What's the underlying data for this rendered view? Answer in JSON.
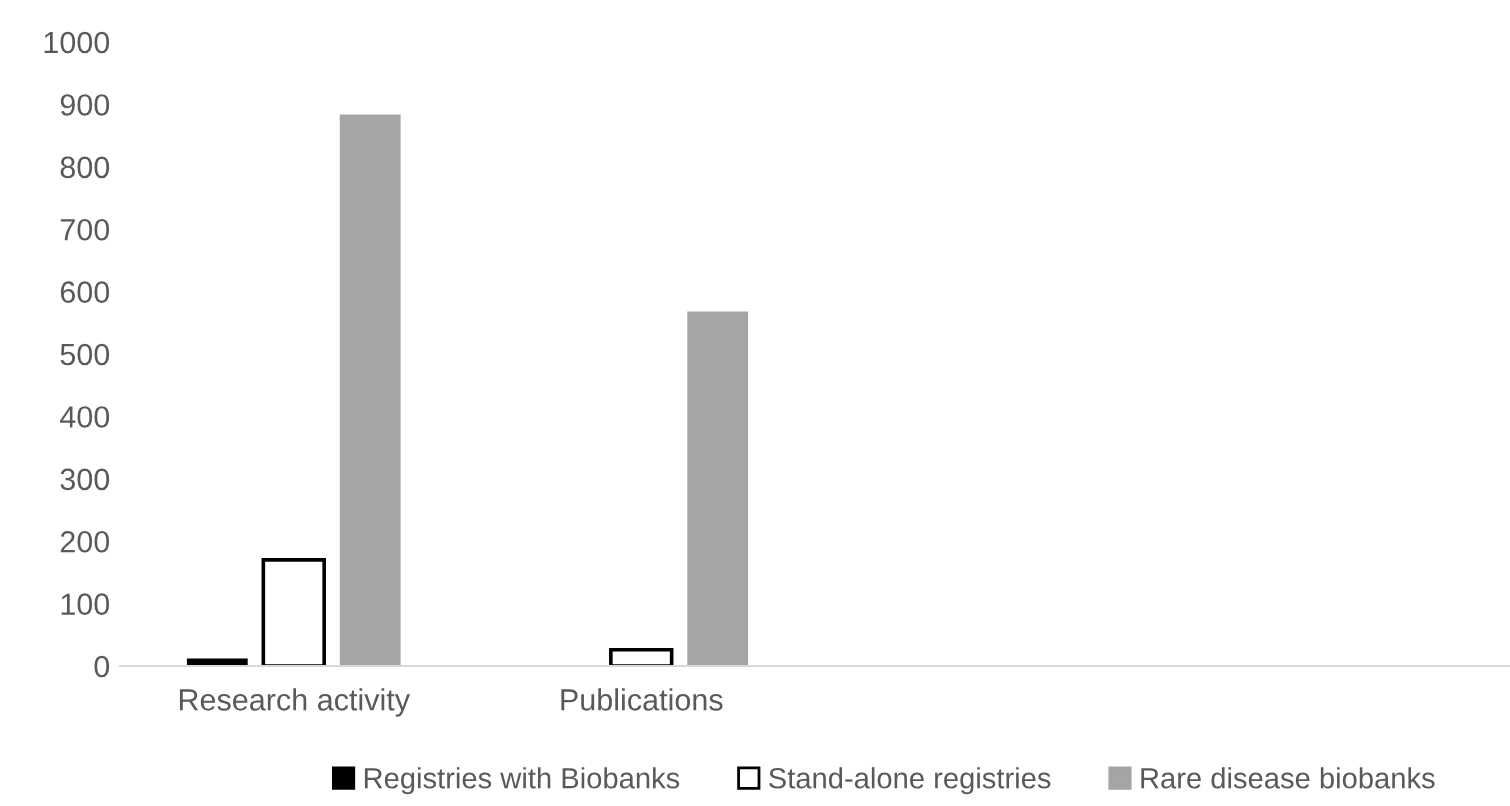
{
  "chart_data": {
    "type": "bar",
    "categories": [
      "Research activity",
      "Publications",
      null,
      null
    ],
    "series": [
      {
        "name": "Registries with Biobanks",
        "color": "#000000",
        "values": [
          12,
          0,
          null,
          null
        ]
      },
      {
        "name": "Stand-alone registries",
        "color": "#ffffff",
        "values": [
          170,
          26,
          null,
          null
        ]
      },
      {
        "name": "Rare disease biobanks",
        "color": "#a5a5a5",
        "values": [
          884,
          568,
          null,
          null
        ]
      }
    ],
    "ylim": [
      0,
      1000
    ],
    "yticks": [
      0,
      100,
      200,
      300,
      400,
      500,
      600,
      700,
      800,
      900,
      1000
    ],
    "grid": false,
    "legend": "bottom"
  }
}
